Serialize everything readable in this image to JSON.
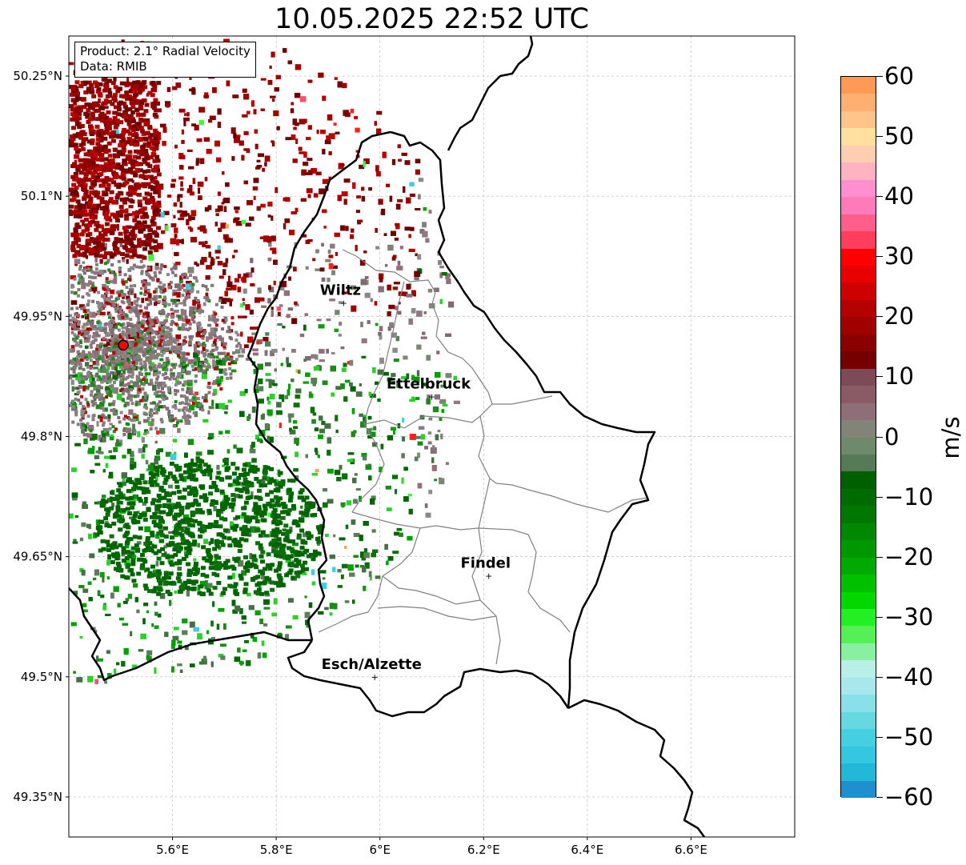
{
  "title": "10.05.2025 22:52 UTC",
  "info": {
    "product": "Product: 2.1° Radial Velocity",
    "source": "Data: RMIB"
  },
  "axes": {
    "lon_ticks": [
      "5.6°E",
      "5.8°E",
      "6°E",
      "6.2°E",
      "6.4°E",
      "6.6°E"
    ],
    "lat_ticks": [
      "50.25°N",
      "50.1°N",
      "49.95°N",
      "49.8°N",
      "49.65°N",
      "49.5°N",
      "49.35°N"
    ],
    "lon_range": [
      5.4,
      6.8
    ],
    "lat_range": [
      49.3,
      50.3
    ],
    "grid": true
  },
  "cities": [
    {
      "name": "Wiltz",
      "lon": 5.93,
      "lat": 49.967
    },
    {
      "name": "Ettelbruck",
      "lon": 6.1,
      "lat": 49.85
    },
    {
      "name": "Findel",
      "lon": 6.21,
      "lat": 49.626
    },
    {
      "name": "Esch/Alzette",
      "lon": 5.99,
      "lat": 49.5
    }
  ],
  "radar_site": {
    "lon": 5.505,
    "lat": 49.914
  },
  "colorbar": {
    "label": "m/s",
    "min": -60,
    "max": 60,
    "ticks": [
      "60",
      "50",
      "40",
      "30",
      "20",
      "10",
      "0",
      "−10",
      "−20",
      "−30",
      "−40",
      "−50",
      "−60"
    ]
  },
  "colors": {
    "away_dark": "#7a0000",
    "away_mid": "#b00000",
    "near_zero": "#857078",
    "toward": "#1e8a1e",
    "toward_dark": "#0e5a0e",
    "border": "#000000",
    "canton": "#808080"
  }
}
